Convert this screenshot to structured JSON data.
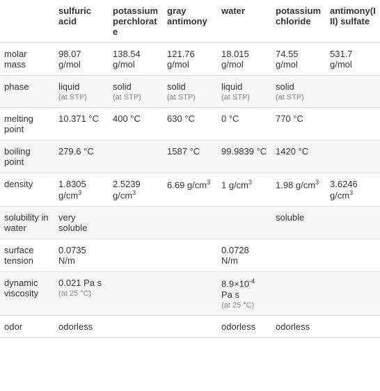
{
  "table": {
    "columns": [
      "",
      "sulfuric acid",
      "potassium perchlorate",
      "gray antimony",
      "water",
      "potassium chloride",
      "antimony(III) sulfate"
    ],
    "rows": [
      {
        "label": "molar mass",
        "cells": [
          {
            "value": "98.07 g/mol"
          },
          {
            "value": "138.54 g/mol"
          },
          {
            "value": "121.76 g/mol"
          },
          {
            "value": "18.015 g/mol"
          },
          {
            "value": "74.55 g/mol"
          },
          {
            "value": "531.7 g/mol"
          }
        ]
      },
      {
        "label": "phase",
        "cells": [
          {
            "value": "liquid",
            "sub": "(at STP)"
          },
          {
            "value": "solid",
            "sub": "(at STP)"
          },
          {
            "value": "solid",
            "sub": "(at STP)"
          },
          {
            "value": "liquid",
            "sub": "(at STP)"
          },
          {
            "value": "solid",
            "sub": "(at STP)"
          },
          {
            "value": ""
          }
        ]
      },
      {
        "label": "melting point",
        "cells": [
          {
            "value": "10.371 °C"
          },
          {
            "value": "400 °C"
          },
          {
            "value": "630 °C"
          },
          {
            "value": "0 °C"
          },
          {
            "value": "770 °C"
          },
          {
            "value": ""
          }
        ]
      },
      {
        "label": "boiling point",
        "cells": [
          {
            "value": "279.6 °C"
          },
          {
            "value": ""
          },
          {
            "value": "1587 °C"
          },
          {
            "value": "99.9839 °C"
          },
          {
            "value": "1420 °C"
          },
          {
            "value": ""
          }
        ]
      },
      {
        "label": "density",
        "cells": [
          {
            "value": "1.8305 g/cm",
            "sup": "3"
          },
          {
            "value": "2.5239 g/cm",
            "sup": "3"
          },
          {
            "value": "6.69 g/cm",
            "sup": "3"
          },
          {
            "value": "1 g/cm",
            "sup": "3"
          },
          {
            "value": "1.98 g/cm",
            "sup": "3"
          },
          {
            "value": "3.6246 g/cm",
            "sup": "3"
          }
        ]
      },
      {
        "label": "solubility in water",
        "cells": [
          {
            "value": "very soluble"
          },
          {
            "value": ""
          },
          {
            "value": ""
          },
          {
            "value": ""
          },
          {
            "value": "soluble"
          },
          {
            "value": ""
          }
        ]
      },
      {
        "label": "surface tension",
        "cells": [
          {
            "value": "0.0735 N/m"
          },
          {
            "value": ""
          },
          {
            "value": ""
          },
          {
            "value": "0.0728 N/m"
          },
          {
            "value": ""
          },
          {
            "value": ""
          }
        ]
      },
      {
        "label": "dynamic viscosity",
        "cells": [
          {
            "value": "0.021 Pa s",
            "sub": "(at 25 °C)"
          },
          {
            "value": ""
          },
          {
            "value": ""
          },
          {
            "value": "8.9×10",
            "sup": "-4",
            "after": " Pa s",
            "sub": "(at 25 °C)"
          },
          {
            "value": ""
          },
          {
            "value": ""
          }
        ]
      },
      {
        "label": "odor",
        "cells": [
          {
            "value": "odorless"
          },
          {
            "value": ""
          },
          {
            "value": ""
          },
          {
            "value": "odorless"
          },
          {
            "value": "odorless"
          },
          {
            "value": ""
          }
        ]
      }
    ],
    "styling": {
      "col_label_width": 78,
      "col_data_width": 78,
      "font_size": 13,
      "sub_font_size": 11,
      "text_color": "#333333",
      "sub_color": "#888888",
      "border_color": "#dddddd",
      "even_row_bg": "#f7f7f7",
      "odd_row_bg": "#ffffff"
    }
  }
}
